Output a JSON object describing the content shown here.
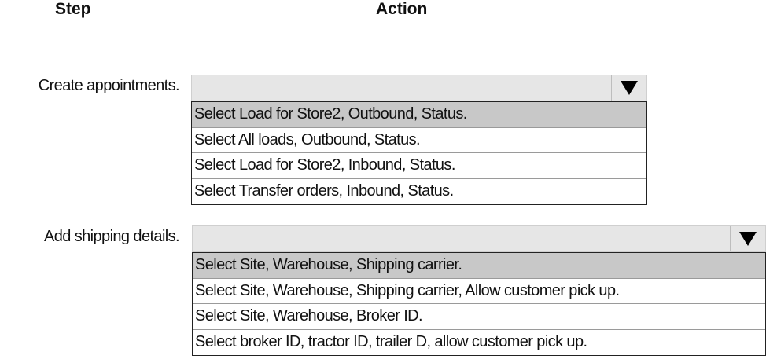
{
  "headers": {
    "step": "Step",
    "action": "Action"
  },
  "rows": [
    {
      "step": "Create appointments.",
      "selected_index": 0,
      "options": [
        "Select Load for Store2, Outbound, Status.",
        "Select All loads, Outbound, Status.",
        "Select Load for Store2, Inbound, Status.",
        "Select Transfer orders, Inbound, Status."
      ]
    },
    {
      "step": "Add shipping details.",
      "selected_index": 0,
      "options": [
        "Select Site, Warehouse, Shipping carrier.",
        "Select Site, Warehouse, Shipping carrier, Allow customer pick up.",
        "Select Site, Warehouse, Broker ID.",
        "Select broker ID, tractor ID, trailer D, allow customer pick up."
      ]
    }
  ],
  "icons": {
    "dropdown": "triangle-down-icon"
  },
  "colors": {
    "highlight": "#c8c8c8",
    "header_bg": "#e6e6e6"
  }
}
